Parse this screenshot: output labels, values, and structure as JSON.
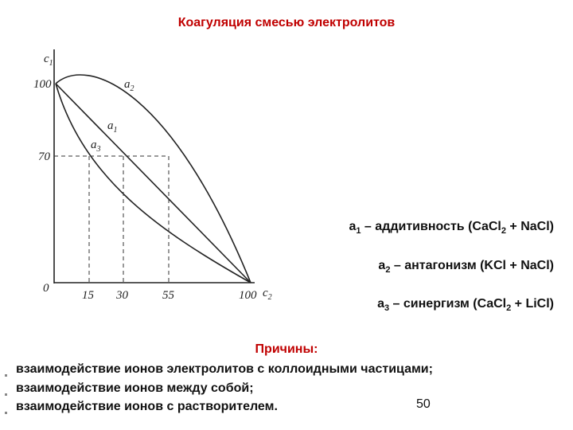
{
  "header": {
    "title": "Коагуляция смесью электролитов"
  },
  "diagram": {
    "y_axis_label": {
      "symbol": "c",
      "index": "1"
    },
    "x_axis_label": {
      "symbol": "c",
      "index": "2"
    },
    "y_ticks": [
      "100",
      "70"
    ],
    "origin": "0",
    "x_ticks": [
      "15",
      "30",
      "55",
      "100"
    ],
    "curves": [
      {
        "symbol": "a",
        "index": "1"
      },
      {
        "symbol": "a",
        "index": "2"
      },
      {
        "symbol": "a",
        "index": "3"
      }
    ]
  },
  "legend": [
    {
      "symbol": "a",
      "index": "1",
      "text": " – аддитивность (CaCl",
      "formula_index": "2",
      "rest": " + NaCl)"
    },
    {
      "symbol": "a",
      "index": "2",
      "text": " – антагонизм (KCl + NaCl)"
    },
    {
      "symbol": "a",
      "index": "3",
      "text": " – синергизм (CaCl",
      "formula_index": "2",
      "rest": " + LiCl)"
    }
  ],
  "reasons": {
    "title": "Причины:",
    "items": [
      "взаимодействие ионов электролитов с коллоидными частицами;",
      "взаимодействие ионов между собой;",
      "взаимодействие ионов с растворителем."
    ]
  },
  "page_number": "50"
}
